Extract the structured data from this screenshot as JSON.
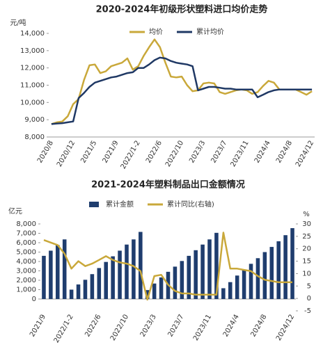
{
  "chart_data": [
    {
      "type": "line",
      "title": "2020-2024年初级形状塑料进口均价走势",
      "y_label": "元/吨",
      "categories": [
        "2020/8",
        null,
        null,
        null,
        "2020/12",
        null,
        null,
        null,
        "2021/5",
        null,
        null,
        null,
        "2021/9",
        null,
        null,
        null,
        "2022/1-2",
        null,
        null,
        null,
        "2022/6",
        null,
        null,
        null,
        "2022/10",
        null,
        null,
        null,
        "2023/3",
        null,
        null,
        null,
        "2023/7",
        null,
        null,
        null,
        "2023/11",
        null,
        null,
        null,
        "2024/4",
        null,
        null,
        null,
        "2024/8",
        null,
        null,
        null,
        "2024/12"
      ],
      "series": [
        {
          "name": "均价",
          "color": "#c9a83a",
          "values": [
            8750,
            8850,
            8900,
            9200,
            9900,
            10200,
            11300,
            12150,
            12200,
            11700,
            11800,
            12100,
            12200,
            12300,
            12550,
            11900,
            12100,
            12700,
            13200,
            13650,
            13200,
            12300,
            11500,
            11450,
            11500,
            11000,
            10650,
            10700,
            11100,
            11150,
            11100,
            10600,
            10500,
            10600,
            10700,
            10750,
            10700,
            10500,
            10600,
            10950,
            11250,
            11150,
            10750,
            10750,
            10750,
            10750,
            10600,
            10450,
            10650
          ]
        },
        {
          "name": "累计均价",
          "color": "#1f3864",
          "values": [
            8750,
            8780,
            8800,
            8850,
            8900,
            10250,
            10550,
            10900,
            11150,
            11250,
            11350,
            11450,
            11500,
            11600,
            11700,
            11750,
            12000,
            12000,
            12200,
            12450,
            12600,
            12550,
            12400,
            12300,
            12250,
            12200,
            12100,
            10700,
            10800,
            10900,
            10900,
            10850,
            10800,
            10800,
            10750,
            10750,
            10750,
            10750,
            10300,
            10450,
            10600,
            10700,
            10750,
            10750,
            10750,
            10750,
            10750,
            10750,
            10750
          ]
        }
      ],
      "ylim": [
        8000,
        14000
      ],
      "yticks": [
        {
          "value": 8000,
          "label": "8,000"
        },
        {
          "value": 9000,
          "label": "9,000"
        },
        {
          "value": 10000,
          "label": "10,000"
        },
        {
          "value": 11000,
          "label": "11,000"
        },
        {
          "value": 12000,
          "label": "12,000"
        },
        {
          "value": 13000,
          "label": "13,000"
        },
        {
          "value": 14000,
          "label": "14,000"
        }
      ],
      "grid": false,
      "legend": "top"
    },
    {
      "type": "bar",
      "title": "2021-2024年塑料制品出口金额情况",
      "y_label": "亿元",
      "y2_label": "%",
      "categories": [
        "2021/9",
        null,
        null,
        null,
        "2022/1-2",
        null,
        null,
        null,
        "2022/6",
        null,
        null,
        null,
        "2022/10",
        null,
        null,
        null,
        "2023/3",
        null,
        null,
        null,
        "2023/7",
        null,
        null,
        null,
        "2023/11",
        null,
        null,
        null,
        "2024/4",
        null,
        null,
        null,
        "2024/8",
        null,
        null,
        null,
        "2024/12"
      ],
      "series": [
        {
          "name": "累计金额",
          "color": "#1f3d6e",
          "values": [
            4600,
            5150,
            5750,
            6350,
            1000,
            1550,
            2050,
            2650,
            3300,
            3950,
            4550,
            5150,
            5800,
            6350,
            7150,
            950,
            1650,
            2300,
            2900,
            3450,
            4050,
            4600,
            5200,
            5800,
            6350,
            7050,
            1150,
            1800,
            2500,
            3100,
            3750,
            4350,
            5000,
            5550,
            6150,
            6800,
            7550
          ]
        },
        {
          "name": "累计同比(右轴)",
          "color": "#c9a83a",
          "type": "line",
          "axis": "y2",
          "values": [
            23.5,
            22.5,
            21.5,
            18,
            12,
            15,
            13,
            14,
            15.5,
            17,
            15.5,
            14.5,
            14,
            13,
            11,
            -0.5,
            9,
            9.5,
            5.5,
            3,
            2,
            2,
            1.5,
            1.5,
            1.5,
            1.5,
            26.5,
            12,
            12,
            11.5,
            11,
            9,
            7.5,
            7,
            6.5,
            6.5,
            6.5
          ]
        }
      ],
      "ylim": [
        0,
        8000
      ],
      "yticks": [
        0,
        {
          "value": 1000,
          "label": "1,000"
        },
        {
          "value": 2000,
          "label": "2,000"
        },
        {
          "value": 3000,
          "label": "3,000"
        },
        {
          "value": 4000,
          "label": "4,000"
        },
        {
          "value": 5000,
          "label": "5,000"
        },
        {
          "value": 6000,
          "label": "6,000"
        },
        {
          "value": 7000,
          "label": "7,000"
        },
        {
          "value": 8000,
          "label": "8,000"
        }
      ],
      "y2lim": [
        -5,
        30
      ],
      "y2ticks": [
        -5,
        0,
        5,
        10,
        15,
        20,
        25,
        30
      ],
      "grid": false,
      "legend": "top"
    }
  ]
}
